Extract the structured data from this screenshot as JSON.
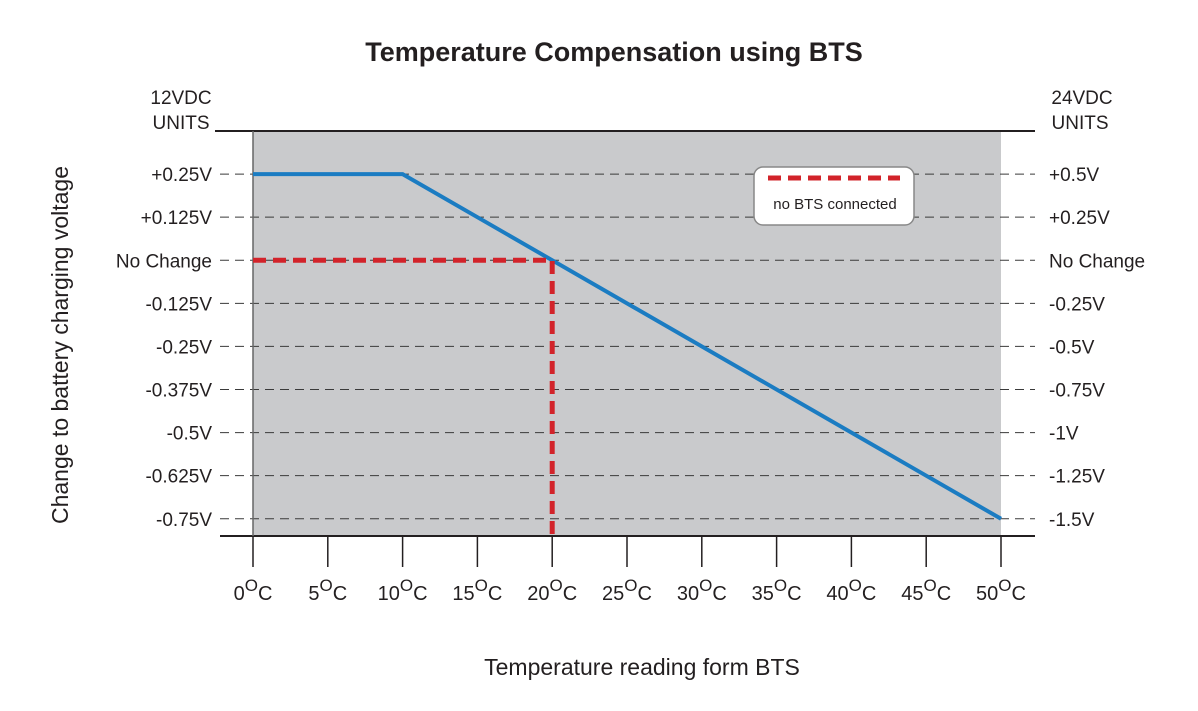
{
  "chart_data": {
    "type": "line",
    "title": "Temperature Compensation using BTS",
    "xlabel": "Temperature reading form BTS",
    "ylabel": "Change to battery charging voltage",
    "left_axis_header": [
      "12VDC",
      "UNITS"
    ],
    "right_axis_header": [
      "24VDC",
      "UNITS"
    ],
    "x_ticks": [
      0,
      5,
      10,
      15,
      20,
      25,
      30,
      35,
      40,
      45,
      50
    ],
    "x_tick_suffix": "C",
    "x_tick_degree": "O",
    "xlim": [
      0,
      50
    ],
    "ylim": [
      -0.8,
      0.375
    ],
    "y_ticks": [
      0.25,
      0.125,
      0,
      -0.125,
      -0.25,
      -0.375,
      -0.5,
      -0.625,
      -0.75
    ],
    "y_tick_labels_left": [
      "+0.25V",
      "+0.125V",
      "No Change",
      "-0.125V",
      "-0.25V",
      "-0.375V",
      "-0.5V",
      "-0.625V",
      "-0.75V"
    ],
    "y_tick_labels_right": [
      "+0.5V",
      "+0.25V",
      "No Change",
      "-0.25V",
      "-0.5V",
      "-0.75V",
      "-1V",
      "-1.25V",
      "-1.5V"
    ],
    "grid": "horizontal dashed",
    "background": "#c9cacc",
    "series": [
      {
        "color": "#1b7cc2",
        "style": "solid",
        "points": [
          [
            0,
            0.25
          ],
          [
            10,
            0.25
          ],
          [
            50,
            -0.75
          ]
        ]
      },
      {
        "name": "no BTS connected",
        "color": "#d2232a",
        "style": "dashed",
        "points": [
          [
            0,
            0
          ],
          [
            20,
            0
          ],
          [
            20,
            -0.8
          ]
        ]
      }
    ],
    "legend": {
      "position": "top-right",
      "label": "no BTS connected"
    }
  }
}
